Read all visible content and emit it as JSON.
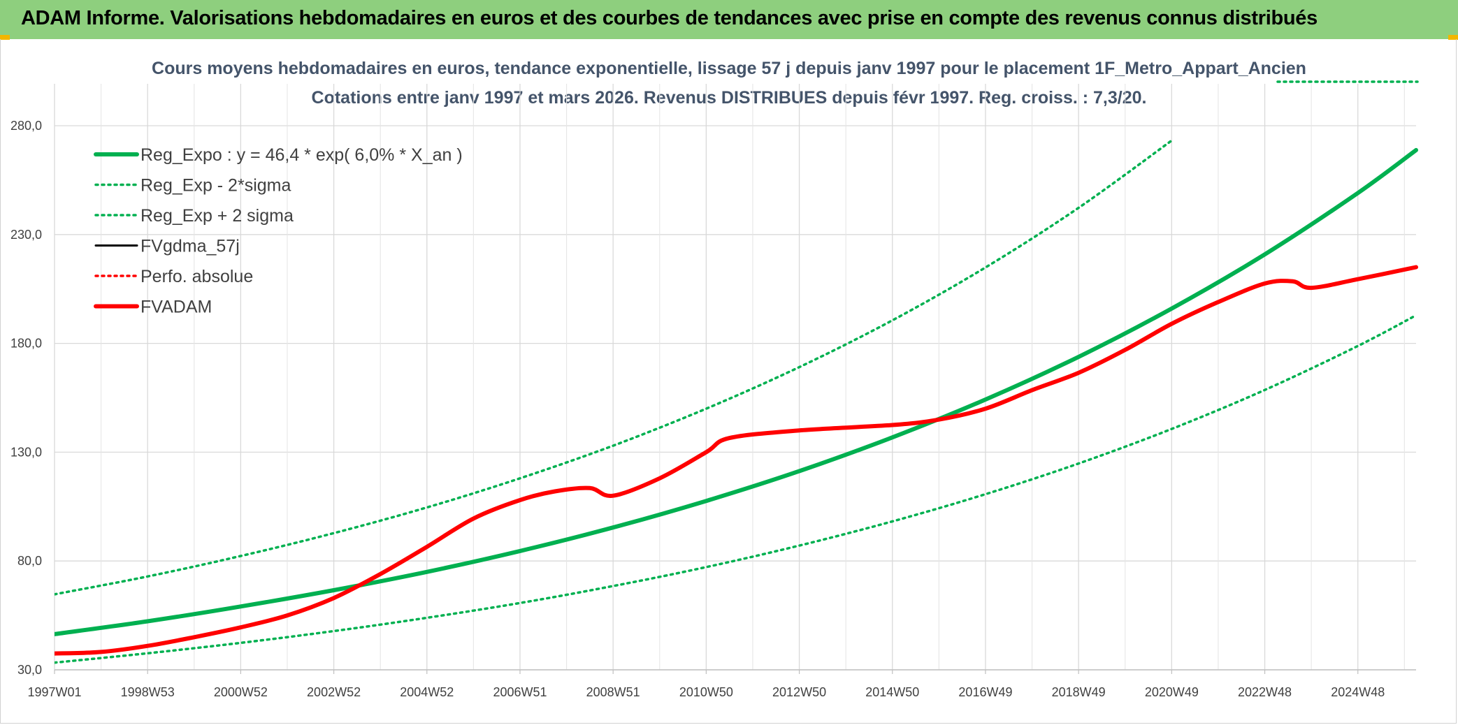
{
  "header": {
    "title": "ADAM Informe. Valorisations hebdomadaires en euros et des courbes de tendances avec prise en compte des revenus connus distribués"
  },
  "colors": {
    "header_bg": "#8ecf7e",
    "corner_mark": "#f2b600",
    "reg_expo": "#00b050",
    "fvadam": "#ff0000",
    "fvgdma": "#000000",
    "title_text": "#44546a"
  },
  "chart_data": {
    "type": "line",
    "title": "Cours moyens hebdomadaires en euros, tendance exponentielle, lissage 57 j depuis janv 1997 pour le placement 1F_Metro_Appart_Ancien",
    "subtitle": "Cotations entre janv 1997 et mars 2026. Revenus DISTRIBUES depuis févr 1997. Reg. croiss. : 7,3/20.",
    "xlabel": "",
    "ylabel": "",
    "ylim": [
      30,
      280
    ],
    "yticks": [
      "30,0",
      "80,0",
      "130,0",
      "180,0",
      "230,0",
      "280,0"
    ],
    "xlim": [
      1997.0,
      2026.25
    ],
    "xticks": [
      {
        "label": "1997W01",
        "x": 1997.0
      },
      {
        "label": "1998W53",
        "x": 1999.0
      },
      {
        "label": "2000W52",
        "x": 2001.0
      },
      {
        "label": "2002W52",
        "x": 2003.0
      },
      {
        "label": "2004W52",
        "x": 2005.0
      },
      {
        "label": "2006W51",
        "x": 2007.0
      },
      {
        "label": "2008W51",
        "x": 2009.0
      },
      {
        "label": "2010W50",
        "x": 2011.0
      },
      {
        "label": "2012W50",
        "x": 2013.0
      },
      {
        "label": "2014W50",
        "x": 2015.0
      },
      {
        "label": "2016W49",
        "x": 2017.0
      },
      {
        "label": "2018W49",
        "x": 2019.0
      },
      {
        "label": "2020W49",
        "x": 2021.0
      },
      {
        "label": "2022W48",
        "x": 2023.0
      },
      {
        "label": "2024W48",
        "x": 2025.0
      }
    ],
    "grid": true,
    "legend_position": "top-left",
    "series": [
      {
        "name": "Reg_Expo : y = 46,4 * exp( 6,0% *  X_an )",
        "style": "solid-thick",
        "color": "#00b050",
        "x": [
          1997,
          1999,
          2001,
          2003,
          2005,
          2007,
          2009,
          2011,
          2013,
          2015,
          2017,
          2019,
          2021,
          2023,
          2025,
          2026.25
        ],
        "y": [
          46.4,
          52.3,
          59.1,
          66.6,
          75.0,
          84.6,
          95.4,
          107.6,
          121.3,
          136.8,
          154.2,
          173.8,
          196.0,
          220.9,
          249.1,
          268.8
        ]
      },
      {
        "name": "Reg_Exp - 2*sigma",
        "style": "dotted",
        "color": "#00b050",
        "x": [
          1997,
          1999,
          2001,
          2003,
          2005,
          2007,
          2009,
          2011,
          2013,
          2015,
          2017,
          2019,
          2021,
          2023,
          2025,
          2026.25
        ],
        "y": [
          33.3,
          37.6,
          42.4,
          47.8,
          53.9,
          60.7,
          68.5,
          77.2,
          87.1,
          98.2,
          110.7,
          124.8,
          140.7,
          158.6,
          178.8,
          192.9
        ]
      },
      {
        "name": "Reg_Exp + 2 sigma",
        "style": "dotted",
        "color": "#00b050",
        "x": [
          1997,
          1999,
          2001,
          2003,
          2005,
          2007,
          2009,
          2011,
          2013,
          2015,
          2017,
          2019,
          2021
        ],
        "y": [
          64.7,
          72.9,
          82.3,
          92.8,
          104.6,
          118.0,
          133.0,
          150.0,
          169.1,
          190.6,
          214.9,
          242.3,
          273.2
        ]
      },
      {
        "name": "FVgdma_57j",
        "style": "solid",
        "color": "#000000",
        "x": [
          1997,
          1998,
          1999,
          2000,
          2001,
          2002,
          2003,
          2004,
          2005,
          2006,
          2007,
          2007.75,
          2008.5,
          2009,
          2010,
          2011,
          2011.5,
          2013,
          2015,
          2016,
          2017,
          2018,
          2019,
          2020,
          2021,
          2022,
          2023,
          2023.6,
          2024,
          2025,
          2026.25
        ],
        "y": [
          37.5,
          38.2,
          41.0,
          45.0,
          49.5,
          55.0,
          63.0,
          74.0,
          86.5,
          99.5,
          108.0,
          112.0,
          113.5,
          110.0,
          118.0,
          130.0,
          136.5,
          140.0,
          142.5,
          145.0,
          150.0,
          158.5,
          166.5,
          177.0,
          189.0,
          199.0,
          207.5,
          208.5,
          205.5,
          209.5,
          215.0
        ]
      },
      {
        "name": "Perfo. absolue",
        "style": "dotted",
        "color": "#ff0000",
        "x": [],
        "y": []
      },
      {
        "name": "FVADAM",
        "style": "solid-thick",
        "color": "#ff0000",
        "x": [
          1997,
          1998,
          1999,
          2000,
          2001,
          2002,
          2003,
          2004,
          2005,
          2006,
          2007,
          2007.75,
          2008.5,
          2009,
          2010,
          2011,
          2011.5,
          2013,
          2015,
          2016,
          2017,
          2018,
          2019,
          2020,
          2021,
          2022,
          2023,
          2023.6,
          2024,
          2025,
          2026.25
        ],
        "y": [
          37.5,
          38.2,
          41.0,
          45.0,
          49.5,
          55.0,
          63.0,
          74.0,
          86.5,
          99.5,
          108.0,
          112.0,
          113.5,
          110.0,
          118.0,
          130.0,
          136.5,
          140.0,
          142.5,
          145.0,
          150.0,
          158.5,
          166.5,
          177.0,
          189.0,
          199.0,
          207.5,
          208.5,
          205.5,
          209.5,
          215.0
        ]
      }
    ],
    "annotations": []
  }
}
